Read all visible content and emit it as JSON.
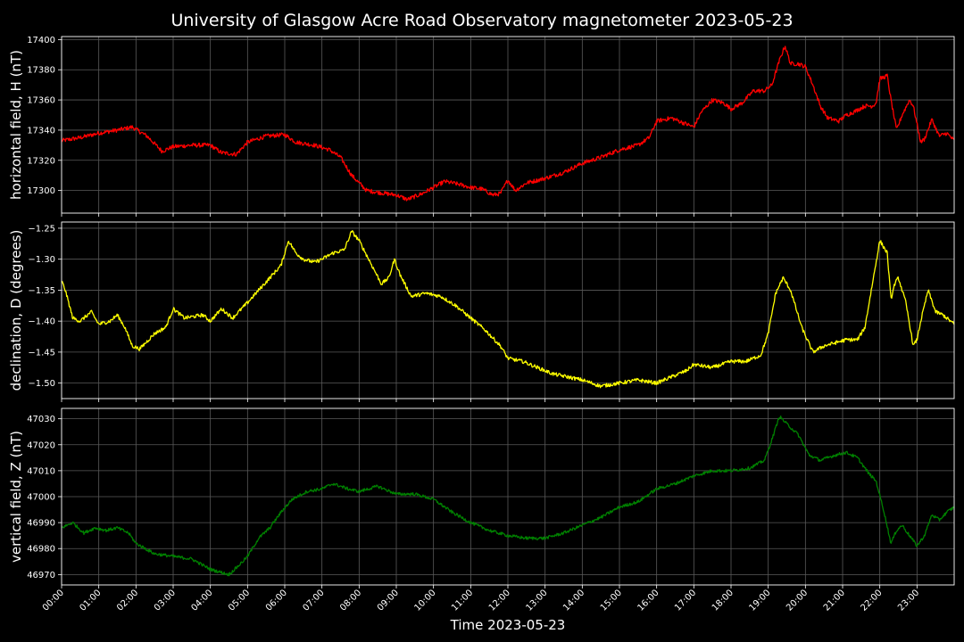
{
  "chart_data": {
    "type": "line",
    "title": "University of Glasgow Acre Road Observatory magnetometer 2023-05-23",
    "xlabel": "Time 2023-05-23",
    "x_unit": "hours",
    "x_range": [
      0,
      24
    ],
    "x_ticks": [
      "00:00",
      "01:00",
      "02:00",
      "03:00",
      "04:00",
      "05:00",
      "06:00",
      "07:00",
      "08:00",
      "09:00",
      "10:00",
      "11:00",
      "12:00",
      "13:00",
      "14:00",
      "15:00",
      "16:00",
      "17:00",
      "18:00",
      "19:00",
      "20:00",
      "21:00",
      "22:00",
      "23:00"
    ],
    "grid": true,
    "panels": [
      {
        "ylabel": "horizontal field, H (nT)",
        "color": "#ff0000",
        "ylim": [
          17285,
          17402
        ],
        "yticks": [
          17300,
          17320,
          17340,
          17360,
          17380,
          17400
        ],
        "ytick_labels": [
          "17300",
          "17320",
          "17340",
          "17360",
          "17380",
          "17400"
        ],
        "noise": 1.4,
        "points": [
          [
            0,
            17333
          ],
          [
            0.5,
            17335
          ],
          [
            1,
            17338
          ],
          [
            1.5,
            17340
          ],
          [
            1.9,
            17342
          ],
          [
            2.3,
            17336
          ],
          [
            2.7,
            17326
          ],
          [
            3,
            17329
          ],
          [
            3.5,
            17330
          ],
          [
            4,
            17330
          ],
          [
            4.3,
            17325
          ],
          [
            4.7,
            17324
          ],
          [
            5,
            17332
          ],
          [
            5.5,
            17336
          ],
          [
            6,
            17337
          ],
          [
            6.3,
            17332
          ],
          [
            6.8,
            17330
          ],
          [
            7.2,
            17327
          ],
          [
            7.5,
            17322
          ],
          [
            7.8,
            17310
          ],
          [
            8.2,
            17300
          ],
          [
            8.7,
            17298
          ],
          [
            9,
            17297
          ],
          [
            9.3,
            17294
          ],
          [
            9.7,
            17298
          ],
          [
            10,
            17302
          ],
          [
            10.3,
            17306
          ],
          [
            10.7,
            17304
          ],
          [
            11,
            17302
          ],
          [
            11.3,
            17301
          ],
          [
            11.6,
            17297
          ],
          [
            11.8,
            17298
          ],
          [
            12,
            17307
          ],
          [
            12.2,
            17300
          ],
          [
            12.5,
            17305
          ],
          [
            13,
            17308
          ],
          [
            13.5,
            17312
          ],
          [
            14,
            17318
          ],
          [
            14.5,
            17322
          ],
          [
            15,
            17327
          ],
          [
            15.5,
            17330
          ],
          [
            15.8,
            17335
          ],
          [
            16,
            17346
          ],
          [
            16.4,
            17348
          ],
          [
            16.7,
            17345
          ],
          [
            17,
            17342
          ],
          [
            17.2,
            17352
          ],
          [
            17.5,
            17360
          ],
          [
            17.8,
            17358
          ],
          [
            18,
            17354
          ],
          [
            18.3,
            17358
          ],
          [
            18.6,
            17366
          ],
          [
            18.9,
            17366
          ],
          [
            19.1,
            17370
          ],
          [
            19.3,
            17386
          ],
          [
            19.45,
            17396
          ],
          [
            19.6,
            17384
          ],
          [
            19.8,
            17384
          ],
          [
            20,
            17382
          ],
          [
            20.2,
            17370
          ],
          [
            20.4,
            17356
          ],
          [
            20.6,
            17348
          ],
          [
            20.9,
            17346
          ],
          [
            21.1,
            17350
          ],
          [
            21.3,
            17352
          ],
          [
            21.6,
            17356
          ],
          [
            21.8,
            17356
          ],
          [
            21.9,
            17358
          ],
          [
            22.0,
            17374
          ],
          [
            22.2,
            17376
          ],
          [
            22.3,
            17360
          ],
          [
            22.45,
            17340
          ],
          [
            22.6,
            17350
          ],
          [
            22.8,
            17360
          ],
          [
            22.9,
            17356
          ],
          [
            23.1,
            17332
          ],
          [
            23.2,
            17334
          ],
          [
            23.4,
            17347
          ],
          [
            23.6,
            17336
          ],
          [
            23.8,
            17338
          ],
          [
            24,
            17333
          ]
        ]
      },
      {
        "ylabel": "declination, D (degrees)",
        "color": "#ffff00",
        "ylim": [
          -1.525,
          -1.24
        ],
        "yticks": [
          -1.5,
          -1.45,
          -1.4,
          -1.35,
          -1.3,
          -1.25
        ],
        "ytick_labels": [
          "−1.50",
          "−1.45",
          "−1.40",
          "−1.35",
          "−1.30",
          "−1.25"
        ],
        "noise": 0.003,
        "points": [
          [
            0,
            -1.335
          ],
          [
            0.1,
            -1.35
          ],
          [
            0.3,
            -1.395
          ],
          [
            0.5,
            -1.4
          ],
          [
            0.8,
            -1.385
          ],
          [
            1,
            -1.405
          ],
          [
            1.3,
            -1.4
          ],
          [
            1.5,
            -1.39
          ],
          [
            1.7,
            -1.41
          ],
          [
            1.9,
            -1.44
          ],
          [
            2.1,
            -1.445
          ],
          [
            2.5,
            -1.42
          ],
          [
            2.8,
            -1.41
          ],
          [
            3,
            -1.38
          ],
          [
            3.3,
            -1.395
          ],
          [
            3.8,
            -1.39
          ],
          [
            4,
            -1.4
          ],
          [
            4.3,
            -1.38
          ],
          [
            4.6,
            -1.395
          ],
          [
            5,
            -1.37
          ],
          [
            5.3,
            -1.35
          ],
          [
            5.6,
            -1.33
          ],
          [
            5.9,
            -1.31
          ],
          [
            6.1,
            -1.27
          ],
          [
            6.3,
            -1.29
          ],
          [
            6.5,
            -1.3
          ],
          [
            6.8,
            -1.305
          ],
          [
            7,
            -1.3
          ],
          [
            7.3,
            -1.29
          ],
          [
            7.6,
            -1.285
          ],
          [
            7.8,
            -1.255
          ],
          [
            8,
            -1.27
          ],
          [
            8.3,
            -1.305
          ],
          [
            8.6,
            -1.34
          ],
          [
            8.8,
            -1.33
          ],
          [
            8.95,
            -1.3
          ],
          [
            9.1,
            -1.325
          ],
          [
            9.4,
            -1.36
          ],
          [
            9.8,
            -1.355
          ],
          [
            10.2,
            -1.36
          ],
          [
            10.6,
            -1.375
          ],
          [
            11,
            -1.395
          ],
          [
            11.4,
            -1.415
          ],
          [
            11.8,
            -1.44
          ],
          [
            12,
            -1.46
          ],
          [
            12.4,
            -1.465
          ],
          [
            12.8,
            -1.475
          ],
          [
            13.2,
            -1.485
          ],
          [
            13.6,
            -1.49
          ],
          [
            14,
            -1.495
          ],
          [
            14.5,
            -1.505
          ],
          [
            15,
            -1.5
          ],
          [
            15.5,
            -1.495
          ],
          [
            16,
            -1.5
          ],
          [
            16.4,
            -1.49
          ],
          [
            16.8,
            -1.48
          ],
          [
            17,
            -1.47
          ],
          [
            17.5,
            -1.475
          ],
          [
            18,
            -1.465
          ],
          [
            18.4,
            -1.465
          ],
          [
            18.8,
            -1.455
          ],
          [
            19,
            -1.42
          ],
          [
            19.2,
            -1.355
          ],
          [
            19.4,
            -1.33
          ],
          [
            19.6,
            -1.35
          ],
          [
            19.9,
            -1.41
          ],
          [
            20.2,
            -1.45
          ],
          [
            20.5,
            -1.44
          ],
          [
            20.8,
            -1.435
          ],
          [
            21.1,
            -1.43
          ],
          [
            21.4,
            -1.43
          ],
          [
            21.6,
            -1.41
          ],
          [
            21.8,
            -1.34
          ],
          [
            22,
            -1.27
          ],
          [
            22.2,
            -1.29
          ],
          [
            22.3,
            -1.365
          ],
          [
            22.4,
            -1.34
          ],
          [
            22.5,
            -1.33
          ],
          [
            22.7,
            -1.37
          ],
          [
            22.9,
            -1.44
          ],
          [
            23,
            -1.43
          ],
          [
            23.1,
            -1.4
          ],
          [
            23.3,
            -1.35
          ],
          [
            23.5,
            -1.385
          ],
          [
            23.7,
            -1.39
          ],
          [
            24,
            -1.405
          ]
        ]
      },
      {
        "ylabel": "vertical field, Z (nT)",
        "color": "#008000",
        "ylim": [
          46966,
          47034
        ],
        "yticks": [
          46970,
          46980,
          46990,
          47000,
          47010,
          47020,
          47030
        ],
        "ytick_labels": [
          "46970",
          "46980",
          "46990",
          "47000",
          "47010",
          "47020",
          "47030"
        ],
        "noise": 0.6,
        "points": [
          [
            0,
            46988
          ],
          [
            0.3,
            46990
          ],
          [
            0.6,
            46986
          ],
          [
            0.9,
            46988
          ],
          [
            1.2,
            46987
          ],
          [
            1.5,
            46988
          ],
          [
            1.8,
            46986
          ],
          [
            2,
            46982
          ],
          [
            2.5,
            46978
          ],
          [
            3,
            46977
          ],
          [
            3.5,
            46976
          ],
          [
            4,
            46972
          ],
          [
            4.5,
            46970
          ],
          [
            4.8,
            46974
          ],
          [
            5,
            46977
          ],
          [
            5.3,
            46984
          ],
          [
            5.6,
            46988
          ],
          [
            5.9,
            46994
          ],
          [
            6.2,
            46999
          ],
          [
            6.6,
            47002
          ],
          [
            7,
            47003
          ],
          [
            7.3,
            47005
          ],
          [
            7.7,
            47003
          ],
          [
            8,
            47002
          ],
          [
            8.5,
            47004
          ],
          [
            9,
            47001
          ],
          [
            9.5,
            47001
          ],
          [
            10,
            46999
          ],
          [
            10.5,
            46994
          ],
          [
            11,
            46990
          ],
          [
            11.5,
            46987
          ],
          [
            12,
            46985
          ],
          [
            12.5,
            46984
          ],
          [
            13,
            46984
          ],
          [
            13.5,
            46986
          ],
          [
            14,
            46989
          ],
          [
            14.5,
            46992
          ],
          [
            15,
            46996
          ],
          [
            15.5,
            46998
          ],
          [
            16,
            47003
          ],
          [
            16.5,
            47005
          ],
          [
            17,
            47008
          ],
          [
            17.5,
            47010
          ],
          [
            18,
            47010
          ],
          [
            18.5,
            47011
          ],
          [
            18.9,
            47014
          ],
          [
            19.1,
            47022
          ],
          [
            19.3,
            47031
          ],
          [
            19.5,
            47028
          ],
          [
            19.8,
            47024
          ],
          [
            20.1,
            47016
          ],
          [
            20.4,
            47014
          ],
          [
            20.8,
            47016
          ],
          [
            21.1,
            47017
          ],
          [
            21.4,
            47015
          ],
          [
            21.7,
            47009
          ],
          [
            21.9,
            47006
          ],
          [
            22.1,
            46995
          ],
          [
            22.3,
            46982
          ],
          [
            22.45,
            46987
          ],
          [
            22.6,
            46989
          ],
          [
            22.8,
            46985
          ],
          [
            23,
            46981
          ],
          [
            23.2,
            46985
          ],
          [
            23.4,
            46993
          ],
          [
            23.6,
            46991
          ],
          [
            23.8,
            46994
          ],
          [
            24,
            46996
          ]
        ]
      }
    ]
  }
}
